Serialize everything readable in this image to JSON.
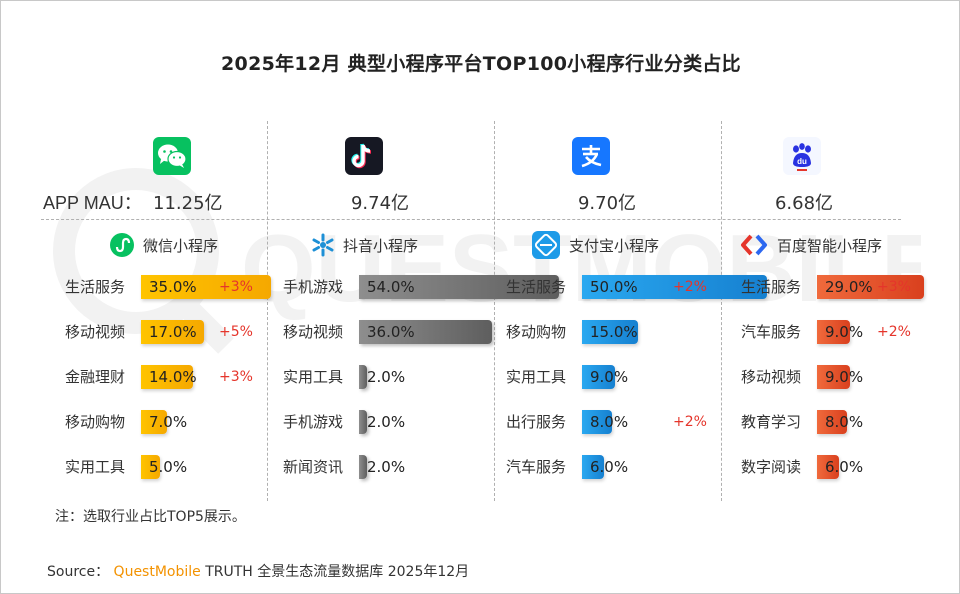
{
  "title": "2025年12月 典型小程序平台TOP100小程序行业分类占比",
  "mau_label": "APP MAU：",
  "note": "注：选取行业占比TOP5展示。",
  "source": {
    "prefix": "Source：",
    "brand": "QuestMobile",
    "rest": "TRUTH 全景生态流量数据库 2025年12月"
  },
  "watermark": "QUESTMOBILE",
  "colors": {
    "wechat": "#f5b800",
    "douyin": "#7a7a7a",
    "alipay": "#1f9be0",
    "baidu": "#e8542c",
    "change": "#e5352b"
  },
  "chart_data": {
    "type": "bar",
    "unit": "%",
    "xlim": [
      0,
      100
    ],
    "panels": [
      {
        "app": "微信",
        "mau": "11.25亿",
        "program": "微信小程序",
        "categories": [
          "生活服务",
          "移动视频",
          "金融理财",
          "移动购物",
          "实用工具"
        ],
        "values": [
          35.0,
          17.0,
          14.0,
          7.0,
          5.0
        ],
        "value_labels": [
          "35.0%",
          "17.0%",
          "14.0%",
          "7.0%",
          "5.0%"
        ],
        "changes": [
          "+3%",
          "+5%",
          "+3%",
          "",
          ""
        ]
      },
      {
        "app": "抖音",
        "mau": "9.74亿",
        "program": "抖音小程序",
        "categories": [
          "手机游戏",
          "移动视频",
          "实用工具",
          "手机游戏",
          "新闻资讯"
        ],
        "values": [
          54.0,
          36.0,
          2.0,
          2.0,
          2.0
        ],
        "value_labels": [
          "54.0%",
          "36.0%",
          "2.0%",
          "2.0%",
          "2.0%"
        ],
        "changes": [
          "",
          "",
          "",
          "",
          ""
        ]
      },
      {
        "app": "支付宝",
        "mau": "9.70亿",
        "program": "支付宝小程序",
        "categories": [
          "生活服务",
          "移动购物",
          "实用工具",
          "出行服务",
          "汽车服务"
        ],
        "values": [
          50.0,
          15.0,
          9.0,
          8.0,
          6.0
        ],
        "value_labels": [
          "50.0%",
          "15.0%",
          "9.0%",
          "8.0%",
          "6.0%"
        ],
        "changes": [
          "+2%",
          "",
          "",
          "+2%",
          ""
        ]
      },
      {
        "app": "百度",
        "mau": "6.68亿",
        "program": "百度智能小程序",
        "categories": [
          "生活服务",
          "汽车服务",
          "移动视频",
          "教育学习",
          "数字阅读"
        ],
        "values": [
          29.0,
          9.0,
          9.0,
          8.0,
          6.0
        ],
        "value_labels": [
          "29.0%",
          "9.0%",
          "9.0%",
          "8.0%",
          "6.0%"
        ],
        "changes": [
          "+3%",
          "+2%",
          "",
          "",
          ""
        ]
      }
    ]
  }
}
